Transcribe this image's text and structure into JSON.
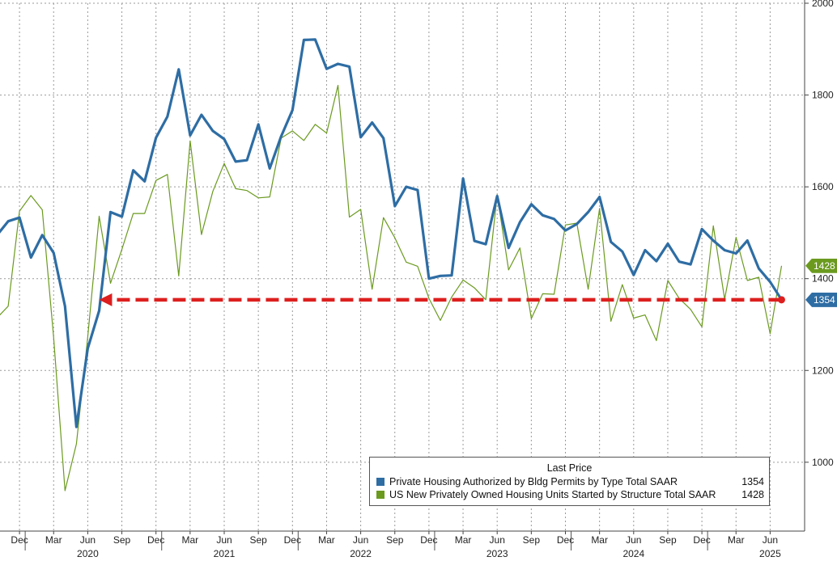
{
  "chart_data": {
    "type": "line",
    "x_labels": [
      "2019-10",
      "2019-11",
      "2019-12",
      "2020-01",
      "2020-02",
      "2020-03",
      "2020-04",
      "2020-05",
      "2020-06",
      "2020-07",
      "2020-08",
      "2020-09",
      "2020-10",
      "2020-11",
      "2020-12",
      "2021-01",
      "2021-02",
      "2021-03",
      "2021-04",
      "2021-05",
      "2021-06",
      "2021-07",
      "2021-08",
      "2021-09",
      "2021-10",
      "2021-11",
      "2021-12",
      "2022-01",
      "2022-02",
      "2022-03",
      "2022-04",
      "2022-05",
      "2022-06",
      "2022-07",
      "2022-08",
      "2022-09",
      "2022-10",
      "2022-11",
      "2022-12",
      "2023-01",
      "2023-02",
      "2023-03",
      "2023-04",
      "2023-05",
      "2023-06",
      "2023-07",
      "2023-08",
      "2023-09",
      "2023-10",
      "2023-11",
      "2023-12",
      "2024-01",
      "2024-02",
      "2024-03",
      "2024-04",
      "2024-05",
      "2024-06",
      "2024-07",
      "2024-08",
      "2024-09",
      "2024-10",
      "2024-11",
      "2024-12",
      "2025-01",
      "2025-02",
      "2025-03",
      "2025-04",
      "2025-05",
      "2025-06",
      "2025-07"
    ],
    "series": [
      {
        "name": "Private Housing Authorized by Bldg Permits by Type Total SAAR",
        "color": "#2e6da4",
        "values": [
          1494,
          1525,
          1533,
          1446,
          1495,
          1456,
          1340,
          1077,
          1248,
          1330,
          1545,
          1535,
          1636,
          1612,
          1707,
          1753,
          1856,
          1712,
          1757,
          1722,
          1704,
          1655,
          1658,
          1736,
          1640,
          1710,
          1767,
          1920,
          1921,
          1857,
          1868,
          1862,
          1708,
          1740,
          1706,
          1558,
          1600,
          1593,
          1400,
          1406,
          1407,
          1618,
          1482,
          1475,
          1580,
          1467,
          1523,
          1562,
          1538,
          1530,
          1505,
          1519,
          1545,
          1578,
          1480,
          1459,
          1408,
          1462,
          1438,
          1476,
          1437,
          1431,
          1508,
          1483,
          1462,
          1455,
          1483,
          1422,
          1393,
          1354
        ]
      },
      {
        "name": "US New Privately Owned Housing Units Started by Structure Total SAAR",
        "color": "#6b9a1f",
        "values": [
          1314,
          1340,
          1547,
          1581,
          1550,
          1271,
          938,
          1040,
          1273,
          1536,
          1390,
          1464,
          1542,
          1542,
          1614,
          1627,
          1406,
          1700,
          1496,
          1590,
          1651,
          1596,
          1592,
          1576,
          1578,
          1706,
          1722,
          1701,
          1736,
          1717,
          1821,
          1534,
          1551,
          1377,
          1533,
          1489,
          1436,
          1427,
          1357,
          1309,
          1360,
          1397,
          1380,
          1354,
          1583,
          1419,
          1467,
          1313,
          1367,
          1366,
          1517,
          1521,
          1377,
          1553,
          1307,
          1387,
          1314,
          1321,
          1265,
          1396,
          1357,
          1333,
          1295,
          1515,
          1355,
          1490,
          1396,
          1403,
          1280,
          1428
        ]
      }
    ],
    "x_tick_labels": [
      {
        "label": "Dec",
        "month": "2019-12"
      },
      {
        "label": "Mar",
        "month": "2020-03"
      },
      {
        "label": "Jun",
        "month": "2020-06"
      },
      {
        "label": "Sep",
        "month": "2020-09"
      },
      {
        "label": "Dec",
        "month": "2020-12"
      },
      {
        "label": "Mar",
        "month": "2021-03"
      },
      {
        "label": "Jun",
        "month": "2021-06"
      },
      {
        "label": "Sep",
        "month": "2021-09"
      },
      {
        "label": "Dec",
        "month": "2021-12"
      },
      {
        "label": "Mar",
        "month": "2022-03"
      },
      {
        "label": "Jun",
        "month": "2022-06"
      },
      {
        "label": "Sep",
        "month": "2022-09"
      },
      {
        "label": "Dec",
        "month": "2022-12"
      },
      {
        "label": "Mar",
        "month": "2023-03"
      },
      {
        "label": "Jun",
        "month": "2023-06"
      },
      {
        "label": "Sep",
        "month": "2023-09"
      },
      {
        "label": "Dec",
        "month": "2023-12"
      },
      {
        "label": "Mar",
        "month": "2024-03"
      },
      {
        "label": "Jun",
        "month": "2024-06"
      },
      {
        "label": "Sep",
        "month": "2024-09"
      },
      {
        "label": "Dec",
        "month": "2024-12"
      },
      {
        "label": "Mar",
        "month": "2025-03"
      },
      {
        "label": "Jun",
        "month": "2025-06"
      }
    ],
    "year_labels": [
      "2020",
      "2021",
      "2022",
      "2023",
      "2024",
      "2025"
    ],
    "y_ticks": [
      1000,
      1200,
      1400,
      1600,
      1800,
      2000
    ],
    "ylim": [
      850,
      2000
    ],
    "y_axis_side": "right",
    "grid": true,
    "legend": {
      "title": "Last Price",
      "placement": "bottom-right",
      "entries": [
        {
          "name": "Private Housing Authorized by Bldg Permits by Type Total SAAR",
          "last": "1354",
          "color": "#2e6da4"
        },
        {
          "name": "US New Privately Owned Housing Units Started by Structure Total SAAR",
          "last": "1428",
          "color": "#6b9a1f"
        }
      ]
    },
    "last_value_tags": [
      {
        "value": 1428,
        "label": "1428",
        "color": "#6b9a1f"
      },
      {
        "value": 1354,
        "label": "1354",
        "color": "#2e6da4"
      }
    ],
    "annotation": {
      "type": "dashed-arrow",
      "color": "#dd1f1f",
      "from": {
        "month": "2025-07",
        "value": 1354
      },
      "to": {
        "month": "2020-07",
        "value": 1354
      }
    }
  }
}
